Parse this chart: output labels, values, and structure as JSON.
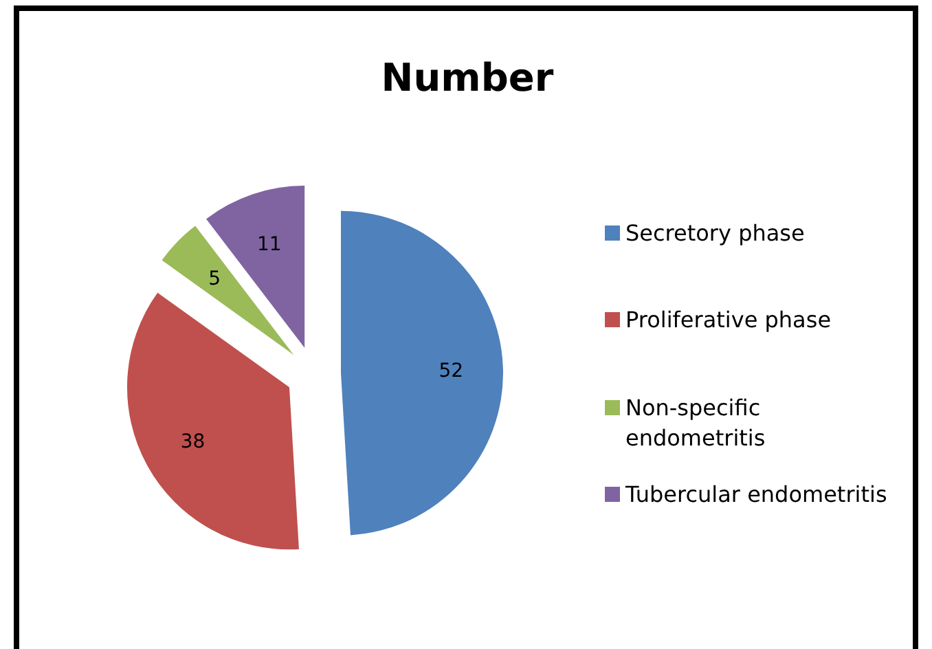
{
  "chart_data": {
    "type": "pie",
    "title": "Number",
    "categories": [
      "Secretory phase",
      "Proliferative phase",
      "Non-specific endometritis",
      "Tubercular endometritis"
    ],
    "values": [
      52,
      38,
      5,
      11
    ],
    "colors": [
      "#4f81bd",
      "#c0504d",
      "#9bbb59",
      "#8064a2"
    ],
    "data_labels": true,
    "legend": "right"
  }
}
